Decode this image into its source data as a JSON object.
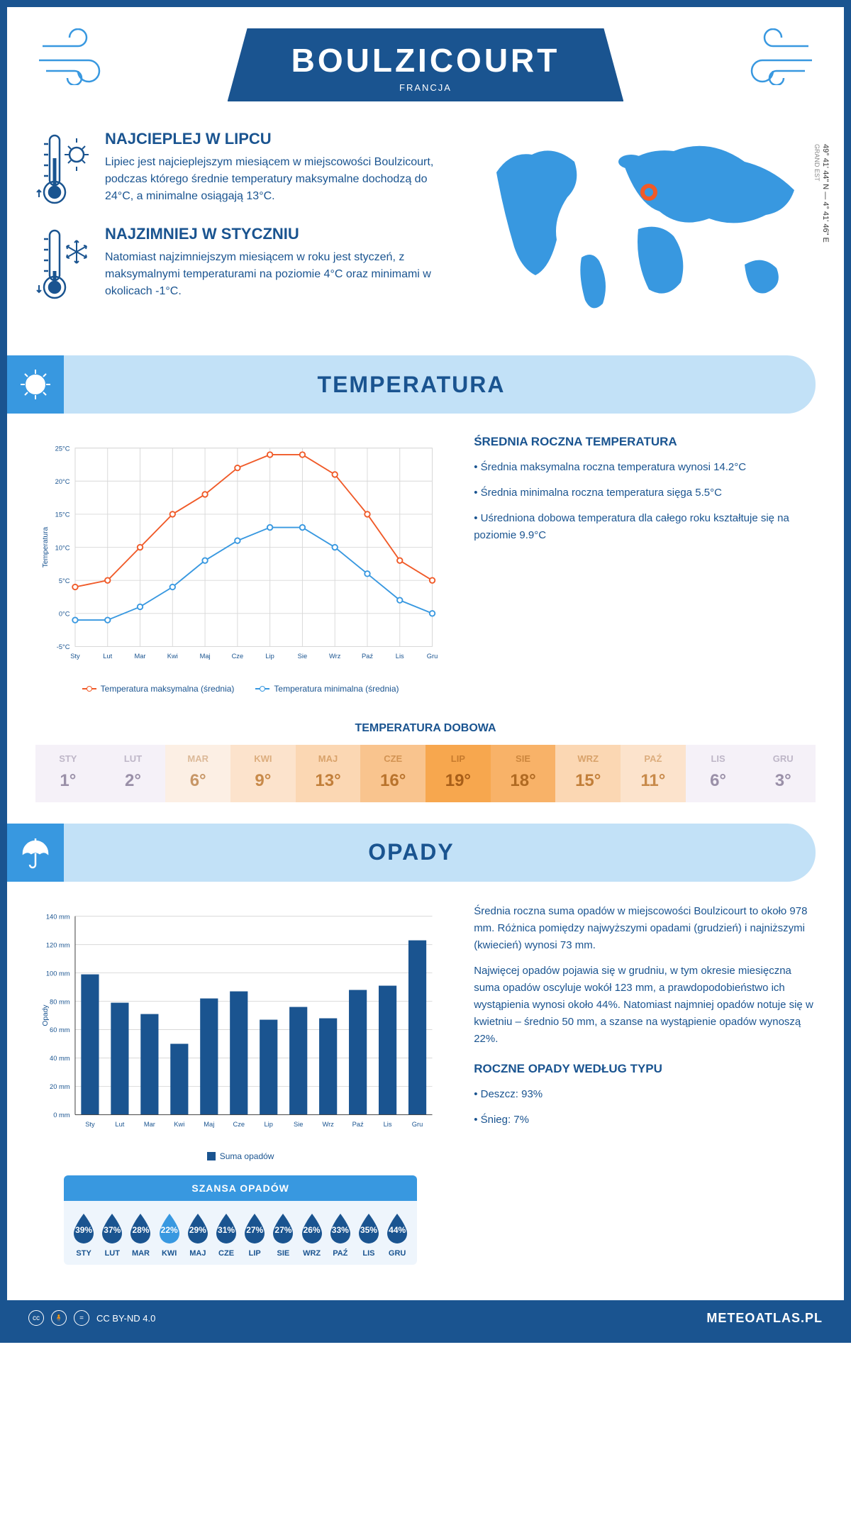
{
  "header": {
    "title": "BOULZICOURT",
    "country": "FRANCJA"
  },
  "coords": {
    "lat": "49° 41' 44\" N",
    "lon": "4° 41' 46\" E",
    "region": "GRAND EST"
  },
  "warmest": {
    "title": "NAJCIEPLEJ W LIPCU",
    "text": "Lipiec jest najcieplejszym miesiącem w miejscowości Boulzicourt, podczas którego średnie temperatury maksymalne dochodzą do 24°C, a minimalne osiągają 13°C."
  },
  "coldest": {
    "title": "NAJZIMNIEJ W STYCZNIU",
    "text": "Natomiast najzimniejszym miesiącem w roku jest styczeń, z maksymalnymi temperaturami na poziomie 4°C oraz minimami w okolicach -1°C."
  },
  "section_temp": "TEMPERATURA",
  "section_precip": "OPADY",
  "months_short": [
    "Sty",
    "Lut",
    "Mar",
    "Kwi",
    "Maj",
    "Cze",
    "Lip",
    "Sie",
    "Wrz",
    "Paź",
    "Lis",
    "Gru"
  ],
  "months_upper": [
    "STY",
    "LUT",
    "MAR",
    "KWI",
    "MAJ",
    "CZE",
    "LIP",
    "SIE",
    "WRZ",
    "PAŹ",
    "LIS",
    "GRU"
  ],
  "temp_chart": {
    "ylabel": "Temperatura",
    "ymin": -5,
    "ymax": 25,
    "ystep": 5,
    "max_series": [
      4,
      5,
      10,
      15,
      18,
      22,
      24,
      24,
      21,
      15,
      8,
      5
    ],
    "min_series": [
      -1,
      -1,
      1,
      4,
      8,
      11,
      13,
      13,
      10,
      6,
      2,
      0
    ],
    "max_color": "#f05a28",
    "min_color": "#3898e0",
    "grid_color": "#d8d8d8",
    "legend_max": "Temperatura maksymalna (średnia)",
    "legend_min": "Temperatura minimalna (średnia)"
  },
  "temp_info": {
    "title": "ŚREDNIA ROCZNA TEMPERATURA",
    "l1": "• Średnia maksymalna roczna temperatura wynosi 14.2°C",
    "l2": "• Średnia minimalna roczna temperatura sięga 5.5°C",
    "l3": "• Uśredniona dobowa temperatura dla całego roku kształtuje się na poziomie 9.9°C"
  },
  "daily_temp": {
    "title": "TEMPERATURA DOBOWA",
    "values": [
      1,
      2,
      6,
      9,
      13,
      16,
      19,
      18,
      15,
      11,
      6,
      3
    ],
    "bg_colors": [
      "#f5f1f8",
      "#f5f1f8",
      "#fcefe4",
      "#fce3cc",
      "#fbd7b3",
      "#f9c48e",
      "#f7a74e",
      "#f8b268",
      "#fbd7b3",
      "#fce3cc",
      "#f5f1f8",
      "#f5f1f8"
    ],
    "text_colors": [
      "#9a90a8",
      "#9a90a8",
      "#c79666",
      "#c88a4a",
      "#c27f3a",
      "#b9732c",
      "#a85e18",
      "#b06a22",
      "#c27f3a",
      "#c88a4a",
      "#9a90a8",
      "#9a90a8"
    ]
  },
  "precip_chart": {
    "ylabel": "Opady",
    "ymin": 0,
    "ymax": 140,
    "ystep": 20,
    "values": [
      99,
      79,
      71,
      50,
      82,
      87,
      67,
      76,
      68,
      88,
      91,
      123
    ],
    "bar_color": "#1a5490",
    "grid_color": "#d8d8d8",
    "legend": "Suma opadów"
  },
  "precip_info": {
    "p1": "Średnia roczna suma opadów w miejscowości Boulzicourt to około 978 mm. Różnica pomiędzy najwyższymi opadami (grudzień) i najniższymi (kwiecień) wynosi 73 mm.",
    "p2": "Najwięcej opadów pojawia się w grudniu, w tym okresie miesięczna suma opadów oscyluje wokół 123 mm, a prawdopodobieństwo ich wystąpienia wynosi około 44%. Natomiast najmniej opadów notuje się w kwietniu – średnio 50 mm, a szanse na wystąpienie opadów wynoszą 22%.",
    "types_title": "ROCZNE OPADY WEDŁUG TYPU",
    "t1": "• Deszcz: 93%",
    "t2": "• Śnieg: 7%"
  },
  "precip_chance": {
    "title": "SZANSA OPADÓW",
    "values": [
      39,
      37,
      28,
      22,
      29,
      31,
      27,
      27,
      26,
      33,
      35,
      44
    ],
    "dark": "#1a5490",
    "light": "#3898e0"
  },
  "footer": {
    "license": "CC BY-ND 4.0",
    "site": "METEOATLAS.PL"
  }
}
